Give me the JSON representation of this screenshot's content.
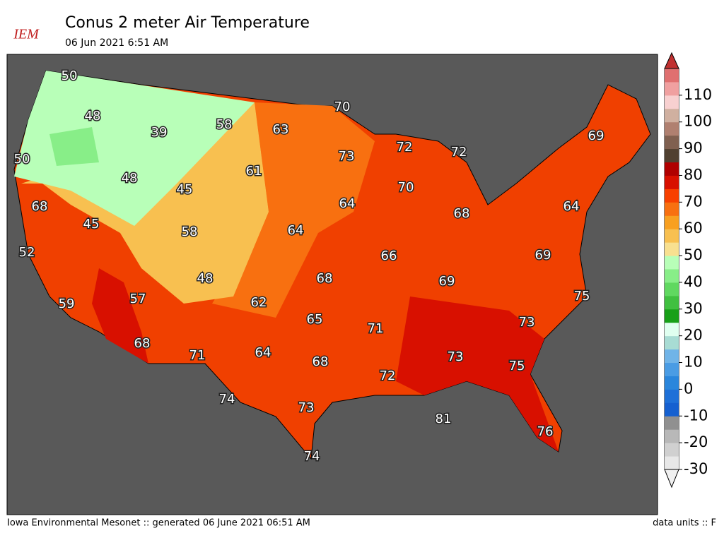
{
  "header": {
    "logo": "IEM",
    "title": "Conus 2 meter Air Temperature",
    "subtitle": "06 Jun 2021 6:51 AM"
  },
  "colorbar": {
    "lim": [
      -30,
      120
    ],
    "ticks": [
      -30,
      -20,
      -10,
      0,
      10,
      20,
      30,
      40,
      50,
      60,
      70,
      80,
      90,
      100,
      110
    ],
    "colors": [
      "#e8e8e8",
      "#d0d0d0",
      "#b8b8b8",
      "#909090",
      "#1560d0",
      "#1e70d8",
      "#2a86dc",
      "#4a9ce4",
      "#70b4e8",
      "#a8dcd4",
      "#e0fff0",
      "#18a018",
      "#40c040",
      "#60d860",
      "#88ee88",
      "#b8ffb8",
      "#f8e090",
      "#f8c050",
      "#f8a020",
      "#f87010",
      "#f84000",
      "#d81000",
      "#b00000",
      "#504030",
      "#806050",
      "#b08070",
      "#d0b0a0",
      "#f8d0d0",
      "#f0a0a0",
      "#e07070"
    ],
    "over_color": "#c03030",
    "under_color": "#f0f0f0"
  },
  "labels": [
    50,
    48,
    39,
    58,
    63,
    70,
    72,
    72,
    69,
    50,
    73,
    61,
    48,
    45,
    70,
    68,
    64,
    64,
    45,
    58,
    64,
    68,
    52,
    66,
    69,
    48,
    68,
    69,
    57,
    62,
    75,
    59,
    65,
    71,
    73,
    68,
    71,
    64,
    68,
    73,
    72,
    75,
    74,
    73,
    81,
    76,
    74
  ],
  "footer": {
    "left": "Iowa Environmental Mesonet :: generated 06 June 2021 06:51 AM",
    "right": "data units :: F"
  }
}
